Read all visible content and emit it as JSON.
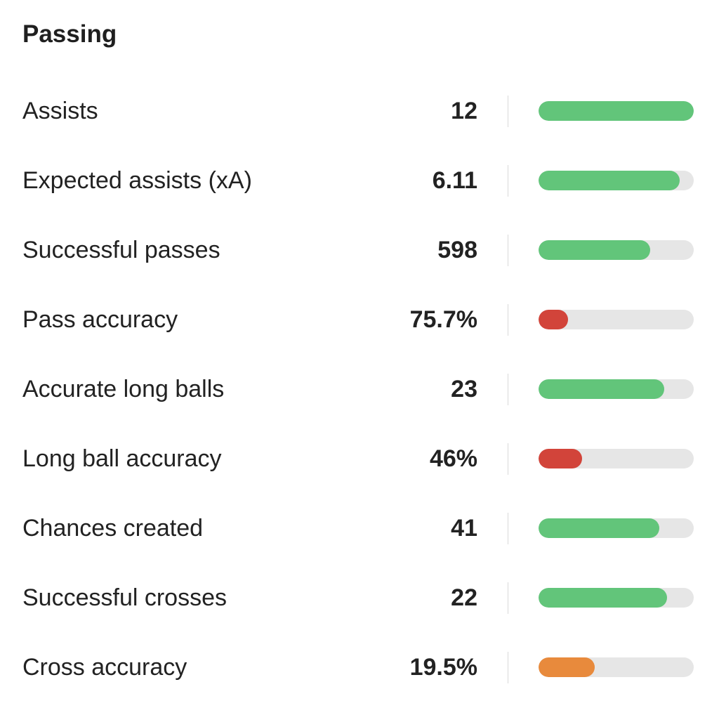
{
  "section": {
    "title": "Passing"
  },
  "colors": {
    "good": "#62c57a",
    "bad": "#d2443a",
    "mid": "#e88a3c",
    "track": "#e6e6e6"
  },
  "stats": [
    {
      "label": "Assists",
      "value": "12",
      "fill": 1.0,
      "level": "good"
    },
    {
      "label": "Expected assists (xA)",
      "value": "6.11",
      "fill": 0.91,
      "level": "good"
    },
    {
      "label": "Successful passes",
      "value": "598",
      "fill": 0.72,
      "level": "good"
    },
    {
      "label": "Pass accuracy",
      "value": "75.7%",
      "fill": 0.19,
      "level": "bad"
    },
    {
      "label": "Accurate long balls",
      "value": "23",
      "fill": 0.81,
      "level": "good"
    },
    {
      "label": "Long ball accuracy",
      "value": "46%",
      "fill": 0.28,
      "level": "bad"
    },
    {
      "label": "Chances created",
      "value": "41",
      "fill": 0.78,
      "level": "good"
    },
    {
      "label": "Successful crosses",
      "value": "22",
      "fill": 0.83,
      "level": "good"
    },
    {
      "label": "Cross accuracy",
      "value": "19.5%",
      "fill": 0.36,
      "level": "mid"
    }
  ]
}
